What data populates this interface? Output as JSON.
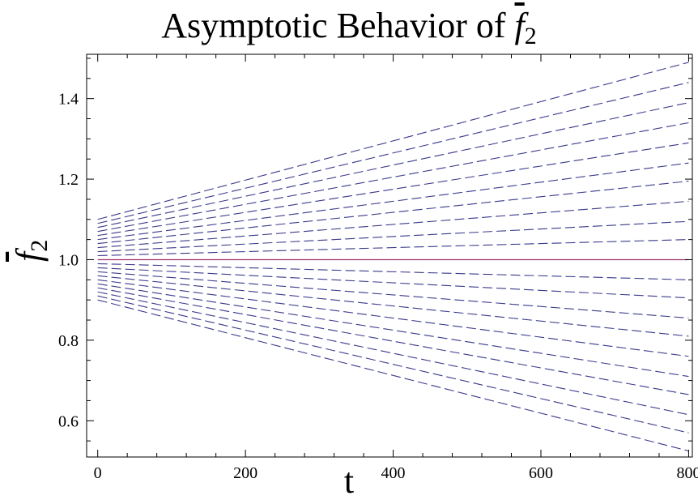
{
  "title": {
    "text": "Asymptotic Behavior of ",
    "symbol": "f",
    "subscript": "2"
  },
  "xlabel": "t",
  "ylabel": {
    "symbol": "f",
    "subscript": "2"
  },
  "chart_data": {
    "type": "line",
    "title": "Asymptotic Behavior of f̄₂",
    "xlabel": "t",
    "ylabel": "f̄₂",
    "xlim": [
      -15,
      805
    ],
    "ylim": [
      0.51,
      1.51
    ],
    "xticks": [
      "0",
      "200",
      "400",
      "600",
      "800"
    ],
    "xtick_values": [
      0,
      200,
      400,
      600,
      800
    ],
    "yticks": [
      "0.6",
      "0.8",
      "1.0",
      "1.2",
      "1.4"
    ],
    "ytick_values": [
      0.6,
      0.8,
      1.0,
      1.2,
      1.4
    ],
    "grid": false,
    "colors": {
      "dashed": "#3a3a8c",
      "solid": "#a0306a"
    },
    "series": [
      {
        "style": "solid",
        "x": [
          0,
          800
        ],
        "y": [
          1.0,
          1.0
        ]
      },
      {
        "style": "dashed",
        "x": [
          0,
          800
        ],
        "y": [
          1.1,
          1.49
        ]
      },
      {
        "style": "dashed",
        "x": [
          0,
          800
        ],
        "y": [
          1.09,
          1.44
        ]
      },
      {
        "style": "dashed",
        "x": [
          0,
          800
        ],
        "y": [
          1.08,
          1.39
        ]
      },
      {
        "style": "dashed",
        "x": [
          0,
          800
        ],
        "y": [
          1.07,
          1.34
        ]
      },
      {
        "style": "dashed",
        "x": [
          0,
          800
        ],
        "y": [
          1.06,
          1.29
        ]
      },
      {
        "style": "dashed",
        "x": [
          0,
          800
        ],
        "y": [
          1.05,
          1.24
        ]
      },
      {
        "style": "dashed",
        "x": [
          0,
          800
        ],
        "y": [
          1.04,
          1.195
        ]
      },
      {
        "style": "dashed",
        "x": [
          0,
          800
        ],
        "y": [
          1.03,
          1.145
        ]
      },
      {
        "style": "dashed",
        "x": [
          0,
          800
        ],
        "y": [
          1.02,
          1.095
        ]
      },
      {
        "style": "dashed",
        "x": [
          0,
          800
        ],
        "y": [
          1.01,
          1.05
        ]
      },
      {
        "style": "dashed",
        "x": [
          0,
          800
        ],
        "y": [
          0.99,
          0.95
        ]
      },
      {
        "style": "dashed",
        "x": [
          0,
          800
        ],
        "y": [
          0.98,
          0.905
        ]
      },
      {
        "style": "dashed",
        "x": [
          0,
          800
        ],
        "y": [
          0.97,
          0.855
        ]
      },
      {
        "style": "dashed",
        "x": [
          0,
          800
        ],
        "y": [
          0.96,
          0.81
        ]
      },
      {
        "style": "dashed",
        "x": [
          0,
          800
        ],
        "y": [
          0.95,
          0.76
        ]
      },
      {
        "style": "dashed",
        "x": [
          0,
          800
        ],
        "y": [
          0.94,
          0.71
        ]
      },
      {
        "style": "dashed",
        "x": [
          0,
          800
        ],
        "y": [
          0.93,
          0.665
        ]
      },
      {
        "style": "dashed",
        "x": [
          0,
          800
        ],
        "y": [
          0.92,
          0.615
        ]
      },
      {
        "style": "dashed",
        "x": [
          0,
          800
        ],
        "y": [
          0.91,
          0.57
        ]
      },
      {
        "style": "dashed",
        "x": [
          0,
          800
        ],
        "y": [
          0.9,
          0.525
        ]
      }
    ]
  }
}
